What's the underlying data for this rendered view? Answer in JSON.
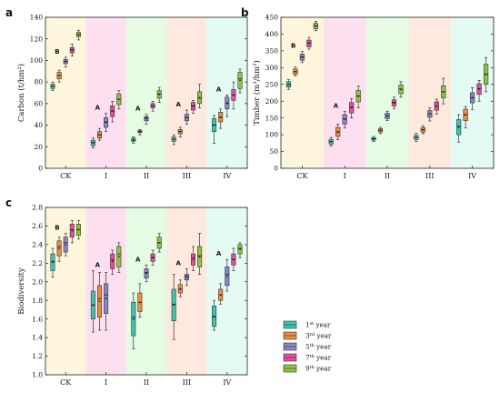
{
  "chart_data": [
    {
      "panel": "a",
      "type": "box",
      "ylabel": "Carbon",
      "ylabel_unit": "(t/hm²)",
      "ylim": [
        0,
        140
      ],
      "yticks": [
        0,
        20,
        40,
        60,
        80,
        100,
        120,
        140
      ],
      "ytick_labels": [
        "0",
        "20",
        "40",
        "60",
        "80",
        "100",
        "120",
        "140"
      ],
      "categories": [
        "CK",
        "I",
        "II",
        "III",
        "IV"
      ],
      "significance": [
        "B",
        "A",
        "A",
        "A",
        "A"
      ],
      "series": [
        {
          "name": "1st year",
          "boxes": [
            [
              72,
              74,
              76,
              78,
              80
            ],
            [
              19,
              21,
              24,
              26,
              28
            ],
            [
              23,
              25,
              26,
              28,
              29
            ],
            [
              22,
              25,
              27,
              29,
              31
            ],
            [
              23,
              34,
              40,
              46,
              49
            ]
          ]
        },
        {
          "name": "3rd year",
          "boxes": [
            [
              80,
              83,
              86,
              89,
              91
            ],
            [
              26,
              28,
              31,
              34,
              37
            ],
            [
              31,
              33,
              34,
              35,
              36
            ],
            [
              29,
              32,
              34,
              36,
              38
            ],
            [
              37,
              43,
              47,
              52,
              55
            ]
          ]
        },
        {
          "name": "5th year",
          "boxes": [
            [
              94,
              97,
              99,
              101,
              103
            ],
            [
              34,
              38,
              43,
              47,
              51
            ],
            [
              41,
              44,
              47,
              48,
              50
            ],
            [
              41,
              44,
              47,
              50,
              54
            ],
            [
              48,
              55,
              60,
              66,
              68
            ]
          ]
        },
        {
          "name": "7th year",
          "boxes": [
            [
              104,
              107,
              110,
              112,
              115
            ],
            [
              43,
              48,
              53,
              58,
              62
            ],
            [
              53,
              56,
              58,
              60,
              62
            ],
            [
              51,
              54,
              58,
              61,
              63
            ],
            [
              55,
              63,
              68,
              73,
              80
            ]
          ]
        },
        {
          "name": "9th year",
          "boxes": [
            [
              119,
              122,
              124,
              126,
              128
            ],
            [
              55,
              59,
              64,
              69,
              72
            ],
            [
              61,
              65,
              69,
              72,
              75
            ],
            [
              56,
              60,
              65,
              71,
              78
            ],
            [
              70,
              74,
              83,
              89,
              92
            ]
          ]
        }
      ]
    },
    {
      "panel": "b",
      "type": "box",
      "ylabel": "Timber",
      "ylabel_unit": "(m³/hm²)",
      "ylim": [
        0,
        450
      ],
      "yticks": [
        0,
        50,
        100,
        150,
        200,
        250,
        300,
        350,
        400,
        450
      ],
      "ytick_labels": [
        "0",
        "50",
        "100",
        "150",
        "200",
        "250",
        "300",
        "350",
        "400",
        "450"
      ],
      "categories": [
        "CK",
        "I",
        "II",
        "III",
        "IV"
      ],
      "significance": [
        "B",
        "A",
        "",
        "",
        ""
      ],
      "series": [
        {
          "name": "1st year",
          "boxes": [
            [
              235,
              242,
              250,
              258,
              264
            ],
            [
              66,
              72,
              80,
              86,
              92
            ],
            [
              80,
              84,
              88,
              91,
              95
            ],
            [
              80,
              86,
              92,
              98,
              104
            ],
            [
              78,
              100,
              125,
              145,
              160
            ]
          ]
        },
        {
          "name": "3rd year",
          "boxes": [
            [
              275,
              280,
              288,
              296,
              302
            ],
            [
              85,
              95,
              108,
              122,
              132
            ],
            [
              103,
              108,
              113,
              118,
              122
            ],
            [
              103,
              108,
              115,
              121,
              127
            ],
            [
              120,
              142,
              160,
              176,
              184
            ]
          ]
        },
        {
          "name": "5th year",
          "boxes": [
            [
              315,
              322,
              332,
              340,
              348
            ],
            [
              120,
              132,
              147,
              160,
              170
            ],
            [
              142,
              148,
              157,
              164,
              170
            ],
            [
              141,
              152,
              162,
              172,
              180
            ],
            [
              175,
              195,
              210,
              225,
              240
            ]
          ]
        },
        {
          "name": "7th year",
          "boxes": [
            [
              355,
              362,
              374,
              382,
              390
            ],
            [
              150,
              165,
              182,
              196,
              208
            ],
            [
              178,
              186,
              196,
              204,
              212
            ],
            [
              162,
              173,
              185,
              198,
              206
            ],
            [
              200,
              220,
              238,
              252,
              262
            ]
          ]
        },
        {
          "name": "9th year",
          "boxes": [
            [
              410,
              416,
              425,
              432,
              438
            ],
            [
              180,
              198,
              216,
              232,
              245
            ],
            [
              212,
              222,
              236,
              248,
              258
            ],
            [
              192,
              210,
              228,
              246,
              268
            ],
            [
              228,
              250,
              280,
              310,
              330
            ]
          ]
        }
      ]
    },
    {
      "panel": "c",
      "type": "box",
      "ylabel": "Biodiversity",
      "ylim": [
        1.0,
        2.8
      ],
      "yticks": [
        1.0,
        1.2,
        1.4,
        1.6,
        1.8,
        2.0,
        2.2,
        2.4,
        2.6,
        2.8
      ],
      "ytick_labels": [
        "1.0",
        "1.2",
        "1.4",
        "1.6",
        "1.8",
        "2.0",
        "2.2",
        "2.4",
        "2.6",
        "2.8"
      ],
      "categories": [
        "CK",
        "I",
        "II",
        "III",
        "IV"
      ],
      "significance": [
        "B",
        "A",
        "A",
        "A",
        "A"
      ],
      "series": [
        {
          "name": "1st year",
          "boxes": [
            [
              2.05,
              2.12,
              2.22,
              2.3,
              2.36
            ],
            [
              1.46,
              1.6,
              1.75,
              1.9,
              2.12
            ],
            [
              1.28,
              1.42,
              1.62,
              1.78,
              1.88
            ],
            [
              1.38,
              1.58,
              1.76,
              1.92,
              2.08
            ],
            [
              1.48,
              1.52,
              1.62,
              1.74,
              1.8
            ]
          ]
        },
        {
          "name": "3rd year",
          "boxes": [
            [
              2.22,
              2.28,
              2.38,
              2.44,
              2.48
            ],
            [
              1.48,
              1.62,
              1.82,
              1.96,
              2.1
            ],
            [
              1.62,
              1.68,
              1.78,
              1.88,
              1.98
            ],
            [
              1.84,
              1.88,
              1.92,
              1.97,
              2.02
            ],
            [
              1.76,
              1.8,
              1.86,
              1.92,
              1.98
            ]
          ]
        },
        {
          "name": "5th year",
          "boxes": [
            [
              2.28,
              2.32,
              2.42,
              2.48,
              2.52
            ],
            [
              1.48,
              1.66,
              1.86,
              1.98,
              2.1
            ],
            [
              2.0,
              2.04,
              2.1,
              2.14,
              2.18
            ],
            [
              1.96,
              2.02,
              2.06,
              2.08,
              2.14
            ],
            [
              1.9,
              1.96,
              2.08,
              2.16,
              2.24
            ]
          ]
        },
        {
          "name": "7th year",
          "boxes": [
            [
              2.42,
              2.48,
              2.56,
              2.62,
              2.66
            ],
            [
              2.08,
              2.14,
              2.24,
              2.3,
              2.34
            ],
            [
              2.18,
              2.22,
              2.26,
              2.3,
              2.34
            ],
            [
              2.12,
              2.18,
              2.26,
              2.3,
              2.38
            ],
            [
              2.12,
              2.18,
              2.24,
              2.3,
              2.36
            ]
          ]
        },
        {
          "name": "9th year",
          "boxes": [
            [
              2.46,
              2.5,
              2.56,
              2.62,
              2.66
            ],
            [
              2.1,
              2.16,
              2.3,
              2.38,
              2.42
            ],
            [
              2.32,
              2.36,
              2.42,
              2.48,
              2.52
            ],
            [
              2.08,
              2.16,
              2.28,
              2.38,
              2.52
            ],
            [
              2.26,
              2.3,
              2.36,
              2.4,
              2.42
            ]
          ]
        }
      ]
    }
  ],
  "legend": {
    "placement": "bottom-right",
    "items": [
      {
        "label": "1st year",
        "color": "#3ec5b0"
      },
      {
        "label": "3rd year",
        "color": "#f08c3a"
      },
      {
        "label": "5th year",
        "color": "#8a86c8"
      },
      {
        "label": "7th year",
        "color": "#e84e9c"
      },
      {
        "label": "9th year",
        "color": "#8cc63f"
      }
    ]
  },
  "colors": {
    "series": [
      "#3ec5b0",
      "#f08c3a",
      "#8a86c8",
      "#e84e9c",
      "#8cc63f"
    ],
    "category_bands": [
      "#fdf6dc",
      "#fde0f0",
      "#e6fbe3",
      "#fde9de",
      "#e3fbf3"
    ]
  }
}
